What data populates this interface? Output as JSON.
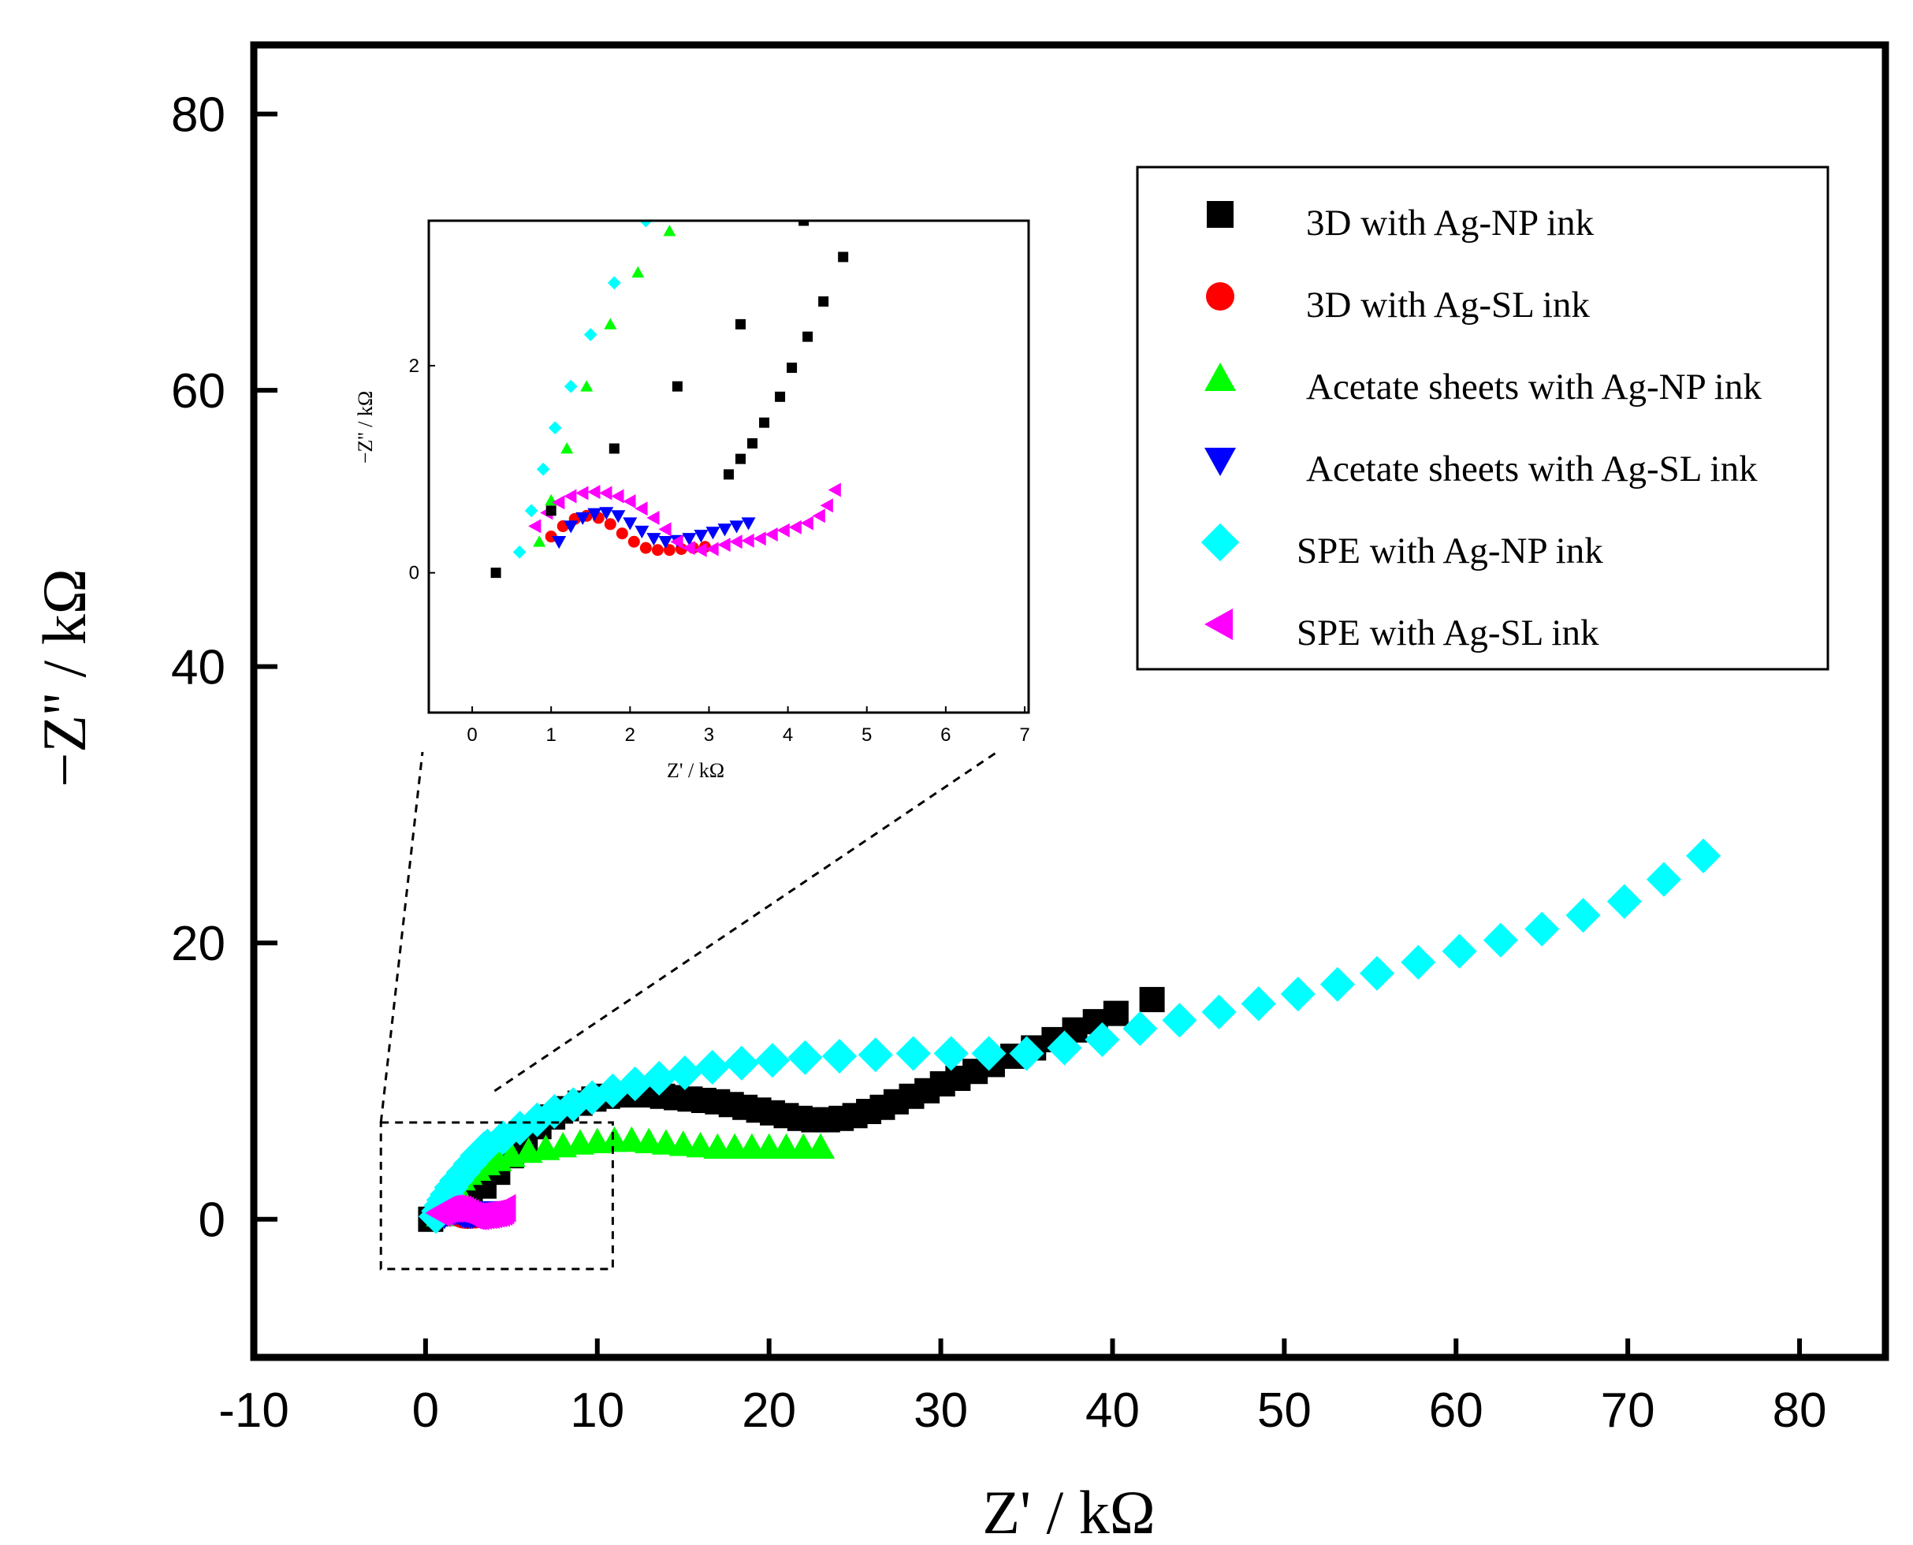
{
  "chart_data": {
    "type": "scatter",
    "title": "",
    "xlabel": "Z' / kΩ",
    "ylabel": "−Z'' / kΩ",
    "xlim": [
      -10,
      85
    ],
    "ylim": [
      -10,
      85
    ],
    "xticks": [
      -10,
      0,
      10,
      20,
      30,
      40,
      50,
      60,
      70,
      80
    ],
    "yticks": [
      0,
      20,
      40,
      60,
      80
    ],
    "legend_position": "top-right",
    "series": [
      {
        "name": "3D with Ag-NP ink",
        "marker": "square",
        "color": "#000000",
        "x": [
          0.3,
          1.0,
          1.8,
          2.6,
          3.4,
          4.2,
          5.0,
          5.8,
          6.6,
          7.4,
          8.2,
          9.0,
          9.8,
          10.6,
          11.4,
          12.2,
          13.0,
          13.8,
          14.6,
          15.4,
          16.2,
          17.0,
          17.8,
          18.6,
          19.4,
          20.2,
          21.0,
          21.8,
          22.6,
          23.4,
          24.2,
          25.0,
          25.8,
          26.6,
          27.4,
          28.3,
          29.2,
          30.1,
          31.0,
          32.0,
          33.0,
          34.2,
          35.4,
          36.6,
          37.8,
          39.0,
          40.2,
          42.3
        ],
        "y": [
          0.0,
          0.6,
          1.2,
          1.8,
          2.4,
          3.4,
          4.6,
          5.8,
          6.7,
          7.4,
          8.0,
          8.4,
          8.7,
          8.9,
          9.0,
          9.0,
          9.0,
          8.9,
          8.8,
          8.7,
          8.6,
          8.5,
          8.3,
          8.1,
          7.9,
          7.7,
          7.5,
          7.3,
          7.2,
          7.2,
          7.3,
          7.5,
          7.8,
          8.1,
          8.5,
          8.9,
          9.3,
          9.8,
          10.2,
          10.7,
          11.2,
          11.8,
          12.4,
          13.0,
          13.7,
          14.3,
          14.9,
          15.9
        ]
      },
      {
        "name": "3D with Ag-SL ink",
        "marker": "circle",
        "color": "#ff0000",
        "x": [
          1.0,
          1.15,
          1.3,
          1.45,
          1.6,
          1.75,
          1.9,
          2.05,
          2.2,
          2.35,
          2.5,
          2.65,
          2.8,
          2.95
        ],
        "y": [
          0.35,
          0.45,
          0.52,
          0.55,
          0.53,
          0.47,
          0.38,
          0.3,
          0.24,
          0.22,
          0.22,
          0.23,
          0.24,
          0.25
        ]
      },
      {
        "name": "Acetate sheets with Ag-NP ink",
        "marker": "triangle-up",
        "color": "#00ff00",
        "x": [
          0.85,
          1.0,
          1.2,
          1.45,
          1.75,
          2.1,
          2.5,
          3.0,
          3.55,
          4.2,
          5.0,
          6.0,
          7.0,
          8.0,
          9.0,
          10.0,
          11.0,
          12.0,
          13.0,
          14.0,
          15.0,
          16.0,
          17.0,
          18.0,
          19.0,
          20.0,
          21.0,
          22.0,
          23.0
        ],
        "y": [
          0.3,
          0.7,
          1.2,
          1.8,
          2.4,
          2.9,
          3.3,
          3.6,
          4.0,
          4.3,
          4.6,
          4.9,
          5.1,
          5.3,
          5.5,
          5.6,
          5.7,
          5.7,
          5.6,
          5.5,
          5.4,
          5.3,
          5.2,
          5.2,
          5.2,
          5.2,
          5.2,
          5.2,
          5.2
        ]
      },
      {
        "name": "Acetate sheets with Ag-SL ink",
        "marker": "triangle-down",
        "color": "#0000ff",
        "x": [
          1.1,
          1.25,
          1.4,
          1.55,
          1.7,
          1.85,
          2.0,
          2.15,
          2.3,
          2.45,
          2.6,
          2.75,
          2.9,
          3.05,
          3.2,
          3.35,
          3.5
        ],
        "y": [
          0.3,
          0.45,
          0.53,
          0.57,
          0.58,
          0.55,
          0.48,
          0.4,
          0.33,
          0.3,
          0.31,
          0.33,
          0.36,
          0.39,
          0.42,
          0.45,
          0.48
        ]
      },
      {
        "name": "SPE with Ag-NP ink",
        "marker": "diamond",
        "color": "#00ffff",
        "x": [
          0.6,
          0.75,
          0.9,
          1.05,
          1.25,
          1.5,
          1.8,
          2.2,
          2.6,
          3.0,
          3.4,
          3.6,
          4.5,
          5.5,
          6.5,
          7.5,
          8.6,
          9.7,
          10.9,
          12.2,
          13.6,
          15.1,
          16.7,
          18.4,
          20.2,
          22.1,
          24.1,
          26.2,
          28.4,
          30.6,
          32.8,
          35.0,
          37.2,
          39.4,
          41.6,
          43.9,
          46.2,
          48.5,
          50.8,
          53.1,
          55.4,
          57.8,
          60.2,
          62.6,
          65.0,
          67.4,
          69.8,
          72.1,
          74.4
        ],
        "y": [
          0.2,
          0.6,
          1.0,
          1.4,
          1.8,
          2.3,
          2.8,
          3.4,
          4.0,
          4.6,
          5.1,
          5.3,
          5.9,
          6.6,
          7.2,
          7.8,
          8.3,
          8.8,
          9.3,
          9.8,
          10.2,
          10.6,
          11.0,
          11.3,
          11.5,
          11.7,
          11.8,
          11.9,
          12.0,
          12.0,
          12.0,
          12.0,
          12.4,
          13.0,
          13.8,
          14.4,
          15.0,
          15.6,
          16.3,
          17.0,
          17.8,
          18.6,
          19.4,
          20.2,
          21.0,
          22.0,
          23.0,
          24.6,
          26.3
        ]
      },
      {
        "name": "SPE with Ag-SL ink",
        "marker": "triangle-left",
        "color": "#ff00ff",
        "x": [
          0.8,
          0.95,
          1.1,
          1.25,
          1.4,
          1.55,
          1.7,
          1.85,
          2.0,
          2.15,
          2.3,
          2.45,
          2.6,
          2.75,
          2.9,
          3.05,
          3.2,
          3.35,
          3.5,
          3.65,
          3.8,
          3.95,
          4.1,
          4.25,
          4.4,
          4.5,
          4.6
        ],
        "y": [
          0.45,
          0.58,
          0.68,
          0.74,
          0.77,
          0.78,
          0.77,
          0.74,
          0.69,
          0.62,
          0.53,
          0.42,
          0.3,
          0.24,
          0.22,
          0.23,
          0.27,
          0.3,
          0.31,
          0.33,
          0.37,
          0.41,
          0.44,
          0.48,
          0.55,
          0.65,
          0.8
        ]
      }
    ],
    "inset": {
      "xlabel": "Z' / kΩ",
      "ylabel": "−Z'' / kΩ",
      "xlim": [
        -0.55,
        7.05
      ],
      "ylim": [
        -1.35,
        3.4
      ],
      "xticks": [
        0,
        1,
        2,
        3,
        4,
        5,
        6,
        7
      ],
      "yticks": [
        0,
        2
      ],
      "zoom_box_xlim": [
        -2.6,
        10.9
      ],
      "zoom_box_ylim": [
        -3.6,
        7.0
      ],
      "extra_points": [
        {
          "series": "3D with Ag-NP ink",
          "x": [
            3.25,
            3.4,
            3.55,
            3.7,
            3.9,
            4.05,
            4.25,
            4.45,
            4.7
          ],
          "y": [
            0.95,
            1.1,
            1.25,
            1.45,
            1.7,
            1.98,
            2.28,
            2.62,
            3.05
          ]
        }
      ]
    }
  }
}
